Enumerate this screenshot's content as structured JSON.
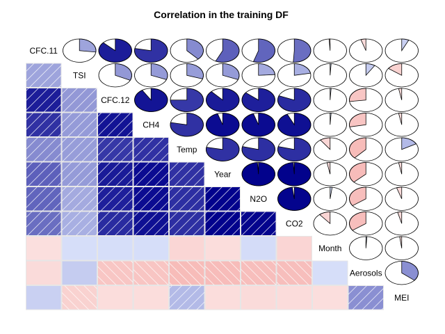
{
  "chart_data": {
    "type": "heatmap",
    "subtype": "corrgram (lower: shaded squares, upper: pie)",
    "title": "Correlation in the training DF",
    "variables": [
      "CFC.11",
      "TSI",
      "CFC.12",
      "CH4",
      "Temp",
      "Year",
      "N2O",
      "CO2",
      "Month",
      "Aerosols",
      "MEI"
    ],
    "correlation_matrix": [
      [
        1.0,
        0.27,
        0.87,
        0.78,
        0.38,
        0.57,
        0.55,
        0.51,
        -0.01,
        -0.05,
        0.07
      ],
      [
        0.27,
        1.0,
        0.32,
        0.31,
        0.3,
        0.31,
        0.24,
        0.22,
        0.01,
        0.09,
        -0.15
      ],
      [
        0.87,
        0.32,
        1.0,
        0.91,
        0.75,
        0.88,
        0.86,
        0.81,
        0.01,
        -0.27,
        -0.03
      ],
      [
        0.78,
        0.31,
        0.91,
        1.0,
        0.78,
        0.95,
        0.95,
        0.93,
        0.01,
        -0.28,
        -0.03
      ],
      [
        0.38,
        0.3,
        0.75,
        0.78,
        1.0,
        0.78,
        0.79,
        0.79,
        -0.1,
        -0.38,
        0.17
      ],
      [
        0.57,
        0.31,
        0.88,
        0.95,
        0.78,
        1.0,
        0.99,
        0.99,
        -0.03,
        -0.37,
        -0.03
      ],
      [
        0.55,
        0.24,
        0.86,
        0.95,
        0.79,
        0.99,
        1.0,
        0.98,
        0.02,
        -0.35,
        -0.05
      ],
      [
        0.51,
        0.22,
        0.81,
        0.93,
        0.79,
        0.99,
        0.98,
        1.0,
        -0.11,
        -0.35,
        -0.04
      ],
      [
        -0.01,
        0.01,
        0.01,
        0.01,
        -0.1,
        -0.03,
        0.02,
        -0.11,
        1.0,
        0.01,
        -0.02
      ],
      [
        -0.05,
        0.09,
        -0.27,
        -0.28,
        -0.38,
        -0.37,
        -0.35,
        -0.35,
        0.01,
        1.0,
        0.36
      ],
      [
        0.07,
        -0.15,
        -0.03,
        -0.03,
        0.17,
        -0.03,
        -0.05,
        -0.04,
        -0.02,
        0.36,
        1.0
      ]
    ],
    "value_range": [
      -1,
      1
    ],
    "colors": {
      "positive": "#00008b",
      "positive_light": "#d8e0fa",
      "negative": "#f0807b",
      "negative_light": "#fbe0df",
      "cell_border": "#e6e6e6",
      "pie_border": "#000000"
    }
  }
}
